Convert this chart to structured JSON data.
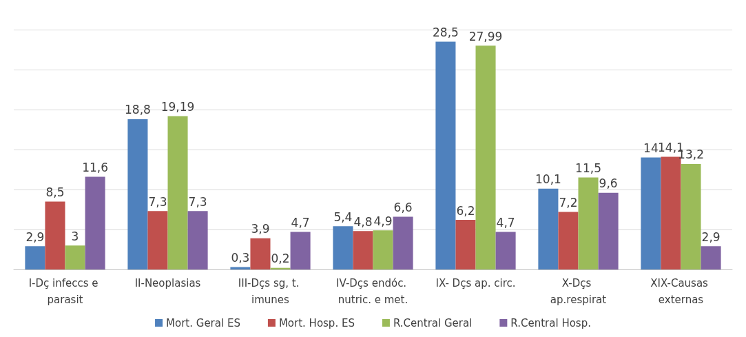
{
  "chart_data": {
    "type": "bar",
    "categories": [
      "I-Dç infeccs e parasit",
      "II-Neoplasias",
      "III-Dçs sg, t. imunes",
      "IV-Dçs endóc. nutric. e met.",
      "IX- Dçs ap. circ.",
      "X-Dçs ap.respirat",
      "XIX-Causas externas"
    ],
    "series": [
      {
        "name": "Mort. Geral ES",
        "color": "#4f81bd",
        "values": [
          2.9,
          18.8,
          0.3,
          5.4,
          28.5,
          10.1,
          14
        ],
        "value_labels": [
          "2,9",
          "18,8",
          "0,3",
          "5,4",
          "28,5",
          "10,1",
          "14"
        ]
      },
      {
        "name": "Mort. Hosp. ES",
        "color": "#c0504d",
        "values": [
          8.5,
          7.3,
          3.9,
          4.8,
          6.2,
          7.2,
          14.1
        ],
        "value_labels": [
          "8,5",
          "7,3",
          "3,9",
          "4,8",
          "6,2",
          "7,2",
          "14,1"
        ]
      },
      {
        "name": "R.Central Geral",
        "color": "#9bbb59",
        "values": [
          3,
          19.19,
          0.2,
          4.9,
          27.99,
          11.5,
          13.2
        ],
        "value_labels": [
          "3",
          "19,19",
          "0,2",
          "4,9",
          "27,99",
          "11,5",
          "13,2"
        ]
      },
      {
        "name": "R.Central Hosp.",
        "color": "#8064a2",
        "values": [
          11.6,
          7.3,
          4.7,
          6.6,
          4.7,
          9.6,
          2.9
        ],
        "value_labels": [
          "11,6",
          "7,3",
          "4,7",
          "6,6",
          "4,7",
          "9,6",
          "2,9"
        ]
      }
    ],
    "ylim": [
      0,
      30
    ],
    "yticks": [
      {
        "value": 0,
        "label": null
      },
      {
        "value": 5,
        "label": null
      },
      {
        "value": 10,
        "label": null
      },
      {
        "value": 15,
        "label": null
      },
      {
        "value": 20,
        "label": null
      },
      {
        "value": 25,
        "label": null
      },
      {
        "value": 30,
        "label": null
      }
    ],
    "grid": "y",
    "tick_labels": "x",
    "legend": "bottom"
  }
}
